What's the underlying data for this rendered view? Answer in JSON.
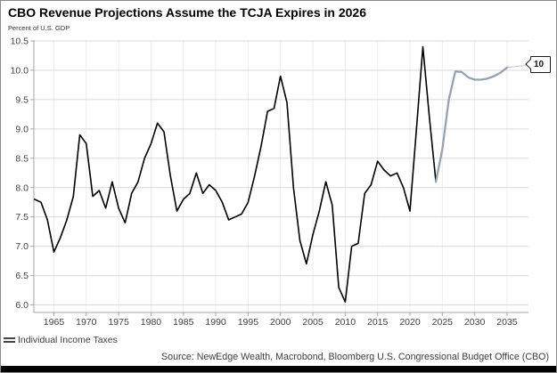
{
  "header": {
    "title": "CBO Revenue Projections Assume the TCJA Expires in 2026",
    "unit_label": "Percent of U.S. GDP"
  },
  "legend": {
    "label": "Individual Income Taxes"
  },
  "callout": {
    "label": "10"
  },
  "footer": {
    "source": "Source: NewEdge Wealth, Macrobond, Bloomberg U.S. Congressional Budget Office (CBO)"
  },
  "colors": {
    "historical_line": "#000000",
    "projection_line": "#94a2b4",
    "grid_horizontal": "#d9d9d9",
    "grid_vertical": "#ececec",
    "axis": "#a6a6a6",
    "tick_text": "#404040",
    "callout_connector": "#c4c4c4",
    "bottom_bar": "#000000"
  },
  "chart_data": {
    "type": "line",
    "title": "CBO Revenue Projections Assume the TCJA Expires in 2026",
    "ylabel": "Percent of U.S. GDP",
    "xlabel": "",
    "xlim": [
      1962,
      2036
    ],
    "ylim": [
      6.0,
      10.5
    ],
    "grid": true,
    "legend_position": "bottom-left",
    "x_ticks": [
      "1965",
      "1970",
      "1975",
      "1980",
      "1985",
      "1990",
      "1995",
      "2000",
      "2005",
      "2010",
      "2015",
      "2020",
      "2025",
      "2030",
      "2035"
    ],
    "y_ticks": [
      "6.0",
      "6.5",
      "7.0",
      "7.5",
      "8.0",
      "8.5",
      "9.0",
      "9.5",
      "10.0",
      "10.5"
    ],
    "end_label": "10",
    "series": [
      {
        "name": "Individual Income Taxes (historical)",
        "color": "#000000",
        "x": [
          1962,
          1963,
          1964,
          1965,
          1966,
          1967,
          1968,
          1969,
          1970,
          1971,
          1972,
          1973,
          1974,
          1975,
          1976,
          1977,
          1978,
          1979,
          1980,
          1981,
          1982,
          1983,
          1984,
          1985,
          1986,
          1987,
          1988,
          1989,
          1990,
          1991,
          1992,
          1993,
          1994,
          1995,
          1996,
          1997,
          1998,
          1999,
          2000,
          2001,
          2002,
          2003,
          2004,
          2005,
          2006,
          2007,
          2008,
          2009,
          2010,
          2011,
          2012,
          2013,
          2014,
          2015,
          2016,
          2017,
          2018,
          2019,
          2020,
          2021,
          2022,
          2023,
          2024
        ],
        "values": [
          7.8,
          7.75,
          7.45,
          6.9,
          7.15,
          7.45,
          7.85,
          8.9,
          8.75,
          7.85,
          7.95,
          7.65,
          8.1,
          7.65,
          7.4,
          7.9,
          8.1,
          8.5,
          8.75,
          9.1,
          8.95,
          8.2,
          7.6,
          7.8,
          7.9,
          8.25,
          7.9,
          8.05,
          7.95,
          7.75,
          7.45,
          7.5,
          7.55,
          7.75,
          8.2,
          8.7,
          9.3,
          9.35,
          9.9,
          9.45,
          8.0,
          7.1,
          6.7,
          7.2,
          7.6,
          8.1,
          7.7,
          6.3,
          6.05,
          7.0,
          7.05,
          7.9,
          8.05,
          8.45,
          8.3,
          8.2,
          8.25,
          8.0,
          7.6,
          9.0,
          10.4,
          9.2,
          8.1
        ]
      },
      {
        "name": "Individual Income Taxes (CBO projection)",
        "color": "#94a2b4",
        "x": [
          2024,
          2025,
          2026,
          2027,
          2028,
          2029,
          2030,
          2031,
          2032,
          2033,
          2034,
          2035
        ],
        "values": [
          8.1,
          8.65,
          9.5,
          9.98,
          9.97,
          9.88,
          9.84,
          9.84,
          9.86,
          9.9,
          9.96,
          10.05
        ]
      }
    ]
  }
}
